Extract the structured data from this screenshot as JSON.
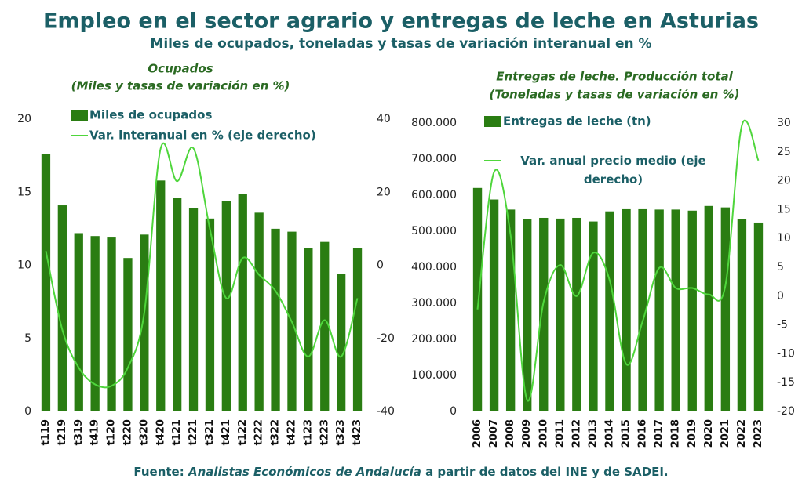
{
  "title": "Empleo en el sector agrario  y entregas de leche en Asturias",
  "subtitle": "Miles de ocupados, toneladas y tasas de variación interanual en %",
  "source": {
    "prefix": "Fuente:",
    "italic": "Analistas Económicos de Andalucía",
    "suffix": "a partir de datos del INE y de SADEI."
  },
  "chart_data": [
    {
      "type": "bar_line",
      "title": "Ocupados",
      "subtitle": "(Miles y tasas de variación en %)",
      "categories": [
        "t119",
        "t219",
        "t319",
        "t419",
        "t120",
        "t220",
        "t320",
        "t420",
        "t121",
        "t221",
        "t321",
        "t421",
        "t122",
        "t222",
        "t322",
        "t422",
        "t123",
        "t223",
        "t323",
        "t423"
      ],
      "series": [
        {
          "name": "Miles de ocupados",
          "color": "#2a7d12",
          "kind": "bar",
          "values": [
            17.6,
            14.1,
            12.2,
            12.0,
            11.9,
            10.5,
            12.1,
            15.8,
            14.6,
            13.9,
            13.2,
            14.4,
            14.9,
            13.6,
            12.5,
            12.3,
            11.2,
            11.6,
            9.4,
            11.2
          ]
        },
        {
          "name": "Var. interanual en % (eje derecho)",
          "color": "#4fd63c",
          "kind": "line",
          "axis": "y2",
          "values": [
            3.9,
            -17.6,
            -28,
            -32.6,
            -33,
            -28,
            -13,
            32,
            23,
            32,
            10,
            -9,
            2,
            -2.6,
            -7,
            -15.5,
            -25,
            -15,
            -25,
            -9
          ]
        }
      ],
      "ylim": [
        0,
        20
      ],
      "yticks": [
        0,
        5,
        10,
        15,
        20
      ],
      "y2lim": [
        -40,
        40
      ],
      "y2ticks": [
        -40,
        -20,
        0,
        20,
        40
      ]
    },
    {
      "type": "bar_line",
      "title": "Entregas de leche. Producción total",
      "subtitle": "(Toneladas y tasas de variación en %)",
      "categories": [
        "2006",
        "2007",
        "2008",
        "2009",
        "2010",
        "2011",
        "2012",
        "2013",
        "2014",
        "2015",
        "2016",
        "2017",
        "2018",
        "2019",
        "2020",
        "2021",
        "2022",
        "2023"
      ],
      "series": [
        {
          "name": "Entregas de leche (tn)",
          "color": "#2a7d12",
          "kind": "bar",
          "values": [
            620000,
            588000,
            560000,
            533000,
            537000,
            535000,
            537000,
            527000,
            555000,
            561000,
            561000,
            560000,
            560000,
            557000,
            570000,
            566000,
            534000,
            524000
          ]
        },
        {
          "name": "Var. anual precio medio (eje derecho)",
          "color": "#4fd63c",
          "kind": "line",
          "axis": "y2",
          "values": [
            -2.3,
            21.5,
            10.6,
            -18,
            -1,
            5.4,
            0,
            7.5,
            2.7,
            -11.8,
            -4.3,
            4.9,
            1.4,
            1.4,
            0.3,
            1.8,
            29.6,
            23.5
          ]
        }
      ],
      "ylim": [
        0,
        800000
      ],
      "yticks": [
        0,
        {
          "value": 100000,
          "label": "100.000"
        },
        {
          "value": 200000,
          "label": "200.000"
        },
        {
          "value": 300000,
          "label": "300.000"
        },
        {
          "value": 400000,
          "label": "400.000"
        },
        {
          "value": 500000,
          "label": "500.000"
        },
        {
          "value": 600000,
          "label": "600.000"
        },
        {
          "value": 700000,
          "label": "700.000"
        },
        {
          "value": 800000,
          "label": "800.000"
        }
      ],
      "y2lim": [
        -20,
        30
      ],
      "y2ticks": [
        -20,
        -15,
        -10,
        -5,
        0,
        5,
        10,
        15,
        20,
        25,
        30
      ]
    }
  ]
}
